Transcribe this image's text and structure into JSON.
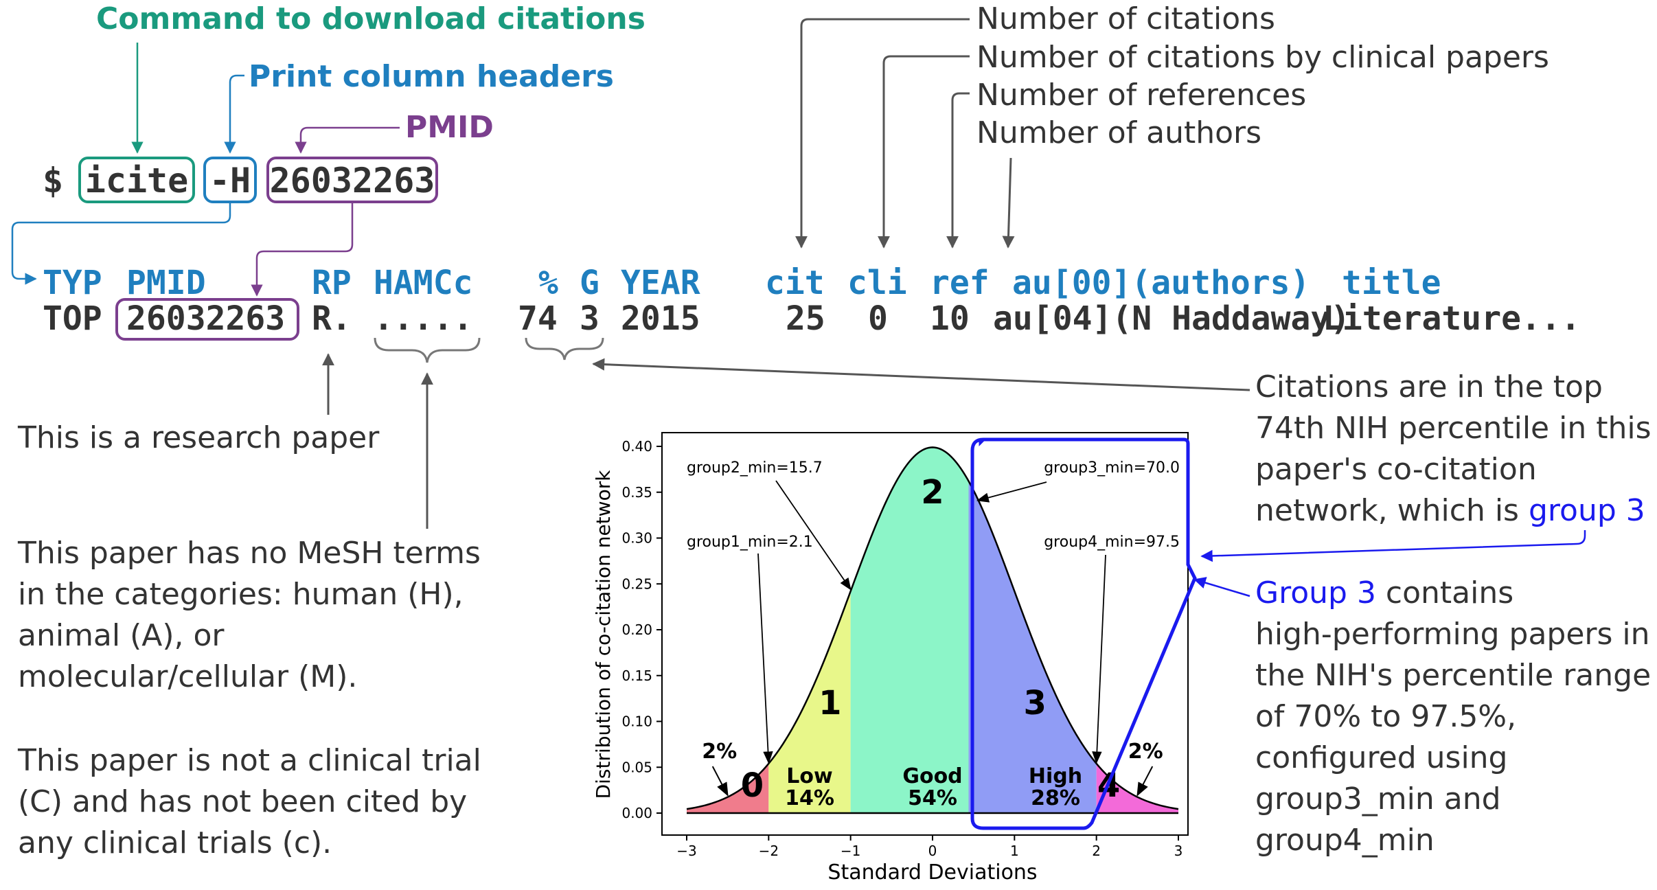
{
  "colors": {
    "teal": "#1a9a7e",
    "blue": "#1f7fbf",
    "purple": "#7b3f8e",
    "dark": "#333333",
    "annot_blue": "#1a1aee",
    "arrow_gray": "#555555",
    "region_pink": "#f07c8c",
    "region_yellow": "#e8f78a",
    "region_green": "#8cf5c8",
    "region_blue": "#909cf5",
    "region_magenta": "#f36ad9"
  },
  "labels": {
    "cmd_download": "Command to download citations",
    "cmd_headers": "Print column headers",
    "cmd_pmid": "PMID",
    "num_citations": "Number of citations",
    "num_cit_clinical": "Number of citations by clinical papers",
    "num_references": "Number of references",
    "num_authors": "Number of authors"
  },
  "command": {
    "prompt": "$",
    "cmd": "icite",
    "flag": "-H",
    "pmid": "26032263"
  },
  "table": {
    "header": {
      "typ": "TYP",
      "pmid": "PMID",
      "rp": "RP",
      "hamcc": "HAMCc",
      "pct": "%",
      "g": "G",
      "year": "YEAR",
      "cit": "cit",
      "cli": "cli",
      "ref": "ref",
      "au": "au[00](authors)",
      "title": "title"
    },
    "row": {
      "typ": "TOP",
      "pmid": "26032263",
      "rp": "R.",
      "hamcc": ".....",
      "pct": "74",
      "g": "3",
      "year": "2015",
      "cit": "25",
      "cli": "0",
      "ref": "10",
      "au": "au[04](N Haddaway)",
      "title": "Literature..."
    }
  },
  "notes": {
    "research": "This is a research paper",
    "mesh": [
      "This paper has no MeSH terms",
      "in the categories: human (H),",
      "animal (A), or",
      "molecular/cellular (M)."
    ],
    "clinical": [
      "This paper is not a clinical trial",
      "(C) and has not been cited by",
      "any clinical trials (c)."
    ],
    "percentile": {
      "lines": [
        "Citations are in the top",
        "74th NIH percentile in this",
        "paper's co-citation"
      ],
      "last_prefix": "network, which is ",
      "last_highlight": "group 3"
    },
    "group3": {
      "first_highlight": "Group 3",
      "first_suffix": " contains",
      "lines": [
        "high-performing papers in",
        "the NIH's percentile range",
        "of 70% to 97.5%,",
        "configured using",
        "group3_min and",
        "group4_min"
      ]
    }
  },
  "chart_data": {
    "type": "area",
    "distribution": "standard-normal",
    "xlabel": "Standard Deviations",
    "ylabel": "Distribution of co-citation network",
    "xlim": [
      -3,
      3
    ],
    "ylim": [
      0,
      0.4
    ],
    "xticks": [
      "−3",
      "−2",
      "−1",
      "0",
      "1",
      "2",
      "3"
    ],
    "yticks": [
      "0.00",
      "0.05",
      "0.10",
      "0.15",
      "0.20",
      "0.25",
      "0.30",
      "0.35",
      "0.40"
    ],
    "regions": [
      {
        "group": "0",
        "from": -3,
        "to": -2,
        "label": "",
        "percent": "2%"
      },
      {
        "group": "1",
        "from": -2,
        "to": -1,
        "label": "Low",
        "percent": "14%"
      },
      {
        "group": "2",
        "from": -1,
        "to": 0.44,
        "label": "Good",
        "percent": "54%"
      },
      {
        "group": "3",
        "from": 0.44,
        "to": 2,
        "label": "High",
        "percent": "28%"
      },
      {
        "group": "4",
        "from": 2,
        "to": 3,
        "label": "",
        "percent": "2%"
      }
    ],
    "annotations": [
      {
        "text": "group2_min=15.7",
        "x": -1.0
      },
      {
        "text": "group1_min=2.1",
        "x": -2.0
      },
      {
        "text": "group3_min=70.0",
        "x": 0.5
      },
      {
        "text": "group4_min=97.5",
        "x": 2.0
      }
    ]
  }
}
